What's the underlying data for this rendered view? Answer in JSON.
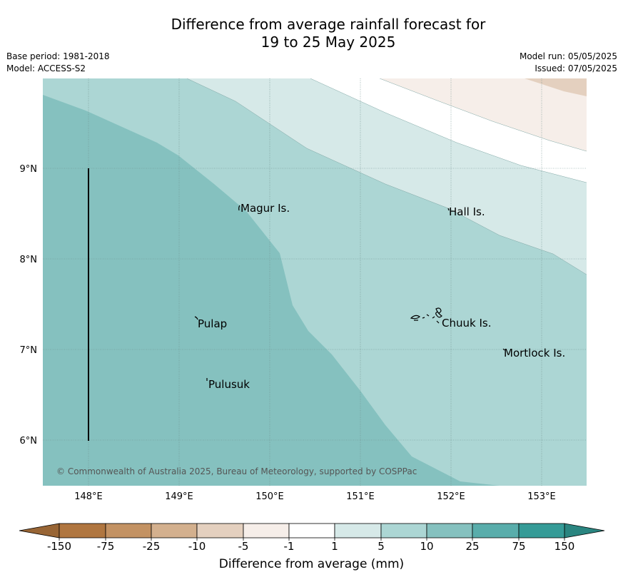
{
  "title": {
    "line1": "Difference from average rainfall forecast for",
    "line2": "19 to 25 May 2025"
  },
  "meta": {
    "base_period": "Base period: 1981-2018",
    "model": "Model: ACCESS-S2",
    "model_run": "Model run: 05/05/2025",
    "issued": "Issued: 07/05/2025"
  },
  "map": {
    "lon_labels": [
      "148°E",
      "149°E",
      "150°E",
      "151°E",
      "152°E",
      "153°E"
    ],
    "lat_labels": [
      "9°N",
      "8°N",
      "7°N",
      "6°N"
    ],
    "places": [
      "Magur Is.",
      "Hall Is.",
      "Chuuk Is.",
      "Mortlock Is.",
      "Pulap",
      "Pulusuk"
    ],
    "copyright": "© Commonwealth of Australia 2025, Bureau of Meteorology, supported by COSPPac"
  },
  "colorbar": {
    "ticks": [
      "-150",
      "-75",
      "-25",
      "-10",
      "-5",
      "-1",
      "1",
      "5",
      "10",
      "25",
      "75",
      "150"
    ],
    "colors": [
      "#b07640",
      "#c39263",
      "#d3b08e",
      "#e4d0bf",
      "#f6eee9",
      "#ffffff",
      "#d6e9e8",
      "#acd6d4",
      "#85c1bf",
      "#59adab",
      "#359b97"
    ],
    "low_arrow_color": "#986535",
    "high_arrow_color": "#2a8580",
    "label": "Difference from average (mm)"
  }
}
